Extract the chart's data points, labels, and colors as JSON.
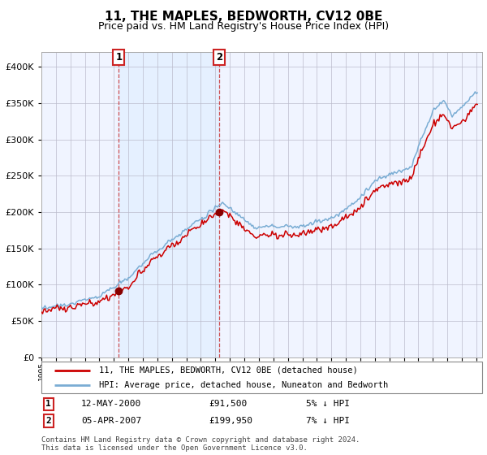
{
  "title": "11, THE MAPLES, BEDWORTH, CV12 0BE",
  "subtitle": "Price paid vs. HM Land Registry's House Price Index (HPI)",
  "legend_line1": "11, THE MAPLES, BEDWORTH, CV12 0BE (detached house)",
  "legend_line2": "HPI: Average price, detached house, Nuneaton and Bedworth",
  "ann1_label": "1",
  "ann1_date": "12-MAY-2000",
  "ann1_price": "£91,500",
  "ann1_hpi": "5% ↓ HPI",
  "ann2_label": "2",
  "ann2_date": "05-APR-2007",
  "ann2_price": "£199,950",
  "ann2_hpi": "7% ↓ HPI",
  "footer": "Contains HM Land Registry data © Crown copyright and database right 2024.\nThis data is licensed under the Open Government Licence v3.0.",
  "ylim": [
    0,
    420000
  ],
  "yticks": [
    0,
    50000,
    100000,
    150000,
    200000,
    250000,
    300000,
    350000,
    400000
  ],
  "line_color_red": "#cc0000",
  "line_color_blue": "#7aadd4",
  "dot_color": "#880000",
  "dashed_color": "#cc3333",
  "bg_highlight_color": "#ddeeff",
  "plot_bg": "#f0f4ff",
  "grid_color": "#bbbbcc",
  "title_fontsize": 11,
  "subtitle_fontsize": 9
}
